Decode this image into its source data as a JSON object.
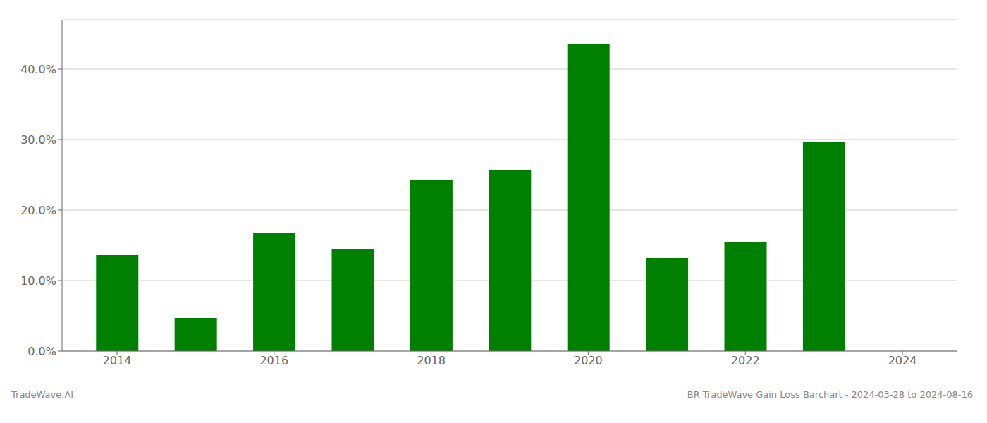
{
  "chart_data": {
    "type": "bar",
    "x": [
      2014,
      2015,
      2016,
      2017,
      2018,
      2019,
      2020,
      2021,
      2022,
      2023
    ],
    "values": [
      0.136,
      0.047,
      0.167,
      0.145,
      0.242,
      0.257,
      0.435,
      0.132,
      0.155,
      0.297
    ],
    "color": "#008000",
    "xlim": [
      2013.3,
      2024.7
    ],
    "xticks": [
      2014,
      2016,
      2018,
      2020,
      2022,
      2024
    ],
    "ylim": [
      0,
      0.47
    ],
    "yticks": [
      {
        "value": 0.0,
        "label": "0.0%"
      },
      {
        "value": 0.1,
        "label": "10.0%"
      },
      {
        "value": 0.2,
        "label": "20.0%"
      },
      {
        "value": 0.3,
        "label": "30.0%"
      },
      {
        "value": 0.4,
        "label": "40.0%"
      }
    ],
    "grid": true,
    "annotations": [
      "TradeWave.AI",
      "BR TradeWave Gain Loss Barchart - 2024-03-28 to 2024-08-16"
    ]
  }
}
